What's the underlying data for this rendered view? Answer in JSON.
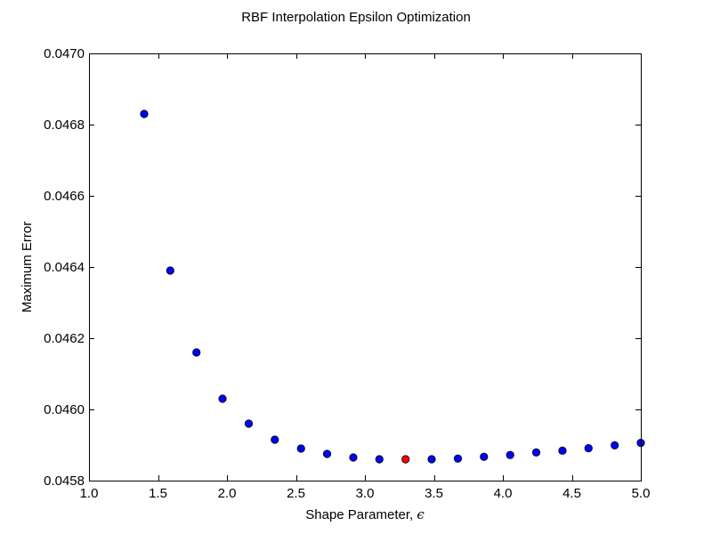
{
  "chart_data": {
    "type": "scatter",
    "title": "RBF Interpolation Epsilon Optimization",
    "xlabel": "Shape Parameter, ",
    "xlabel_symbol": "ϵ",
    "ylabel": "Maximum Error",
    "xlim": [
      1.0,
      5.0
    ],
    "ylim": [
      0.0458,
      0.047
    ],
    "xticks": [
      1.0,
      1.5,
      2.0,
      2.5,
      3.0,
      3.5,
      4.0,
      4.5,
      5.0
    ],
    "xtick_labels": [
      "1.0",
      "1.5",
      "2.0",
      "2.5",
      "3.0",
      "3.5",
      "4.0",
      "4.5",
      "5.0"
    ],
    "yticks": [
      0.0458,
      0.046,
      0.0462,
      0.0464,
      0.0466,
      0.0468,
      0.047
    ],
    "ytick_labels": [
      "0.0458",
      "0.0460",
      "0.0462",
      "0.0464",
      "0.0466",
      "0.0468",
      "0.0470"
    ],
    "grid": false,
    "legend": "none",
    "series": [
      {
        "color": "#0000ff",
        "x": [
          1.4,
          1.589,
          1.779,
          1.968,
          2.158,
          2.347,
          2.537,
          2.726,
          2.916,
          3.105,
          3.484,
          3.674,
          3.863,
          4.053,
          4.242,
          4.432,
          4.621,
          4.811,
          5.0
        ],
        "y": [
          0.04683,
          0.04639,
          0.04616,
          0.04603,
          0.04596,
          0.045915,
          0.04589,
          0.045875,
          0.045865,
          0.04586,
          0.04586,
          0.045862,
          0.045867,
          0.045872,
          0.045879,
          0.045884,
          0.045891,
          0.045899,
          0.045906
        ]
      },
      {
        "color": "#ff0000",
        "x": [
          3.295
        ],
        "y": [
          0.04586
        ]
      }
    ]
  }
}
